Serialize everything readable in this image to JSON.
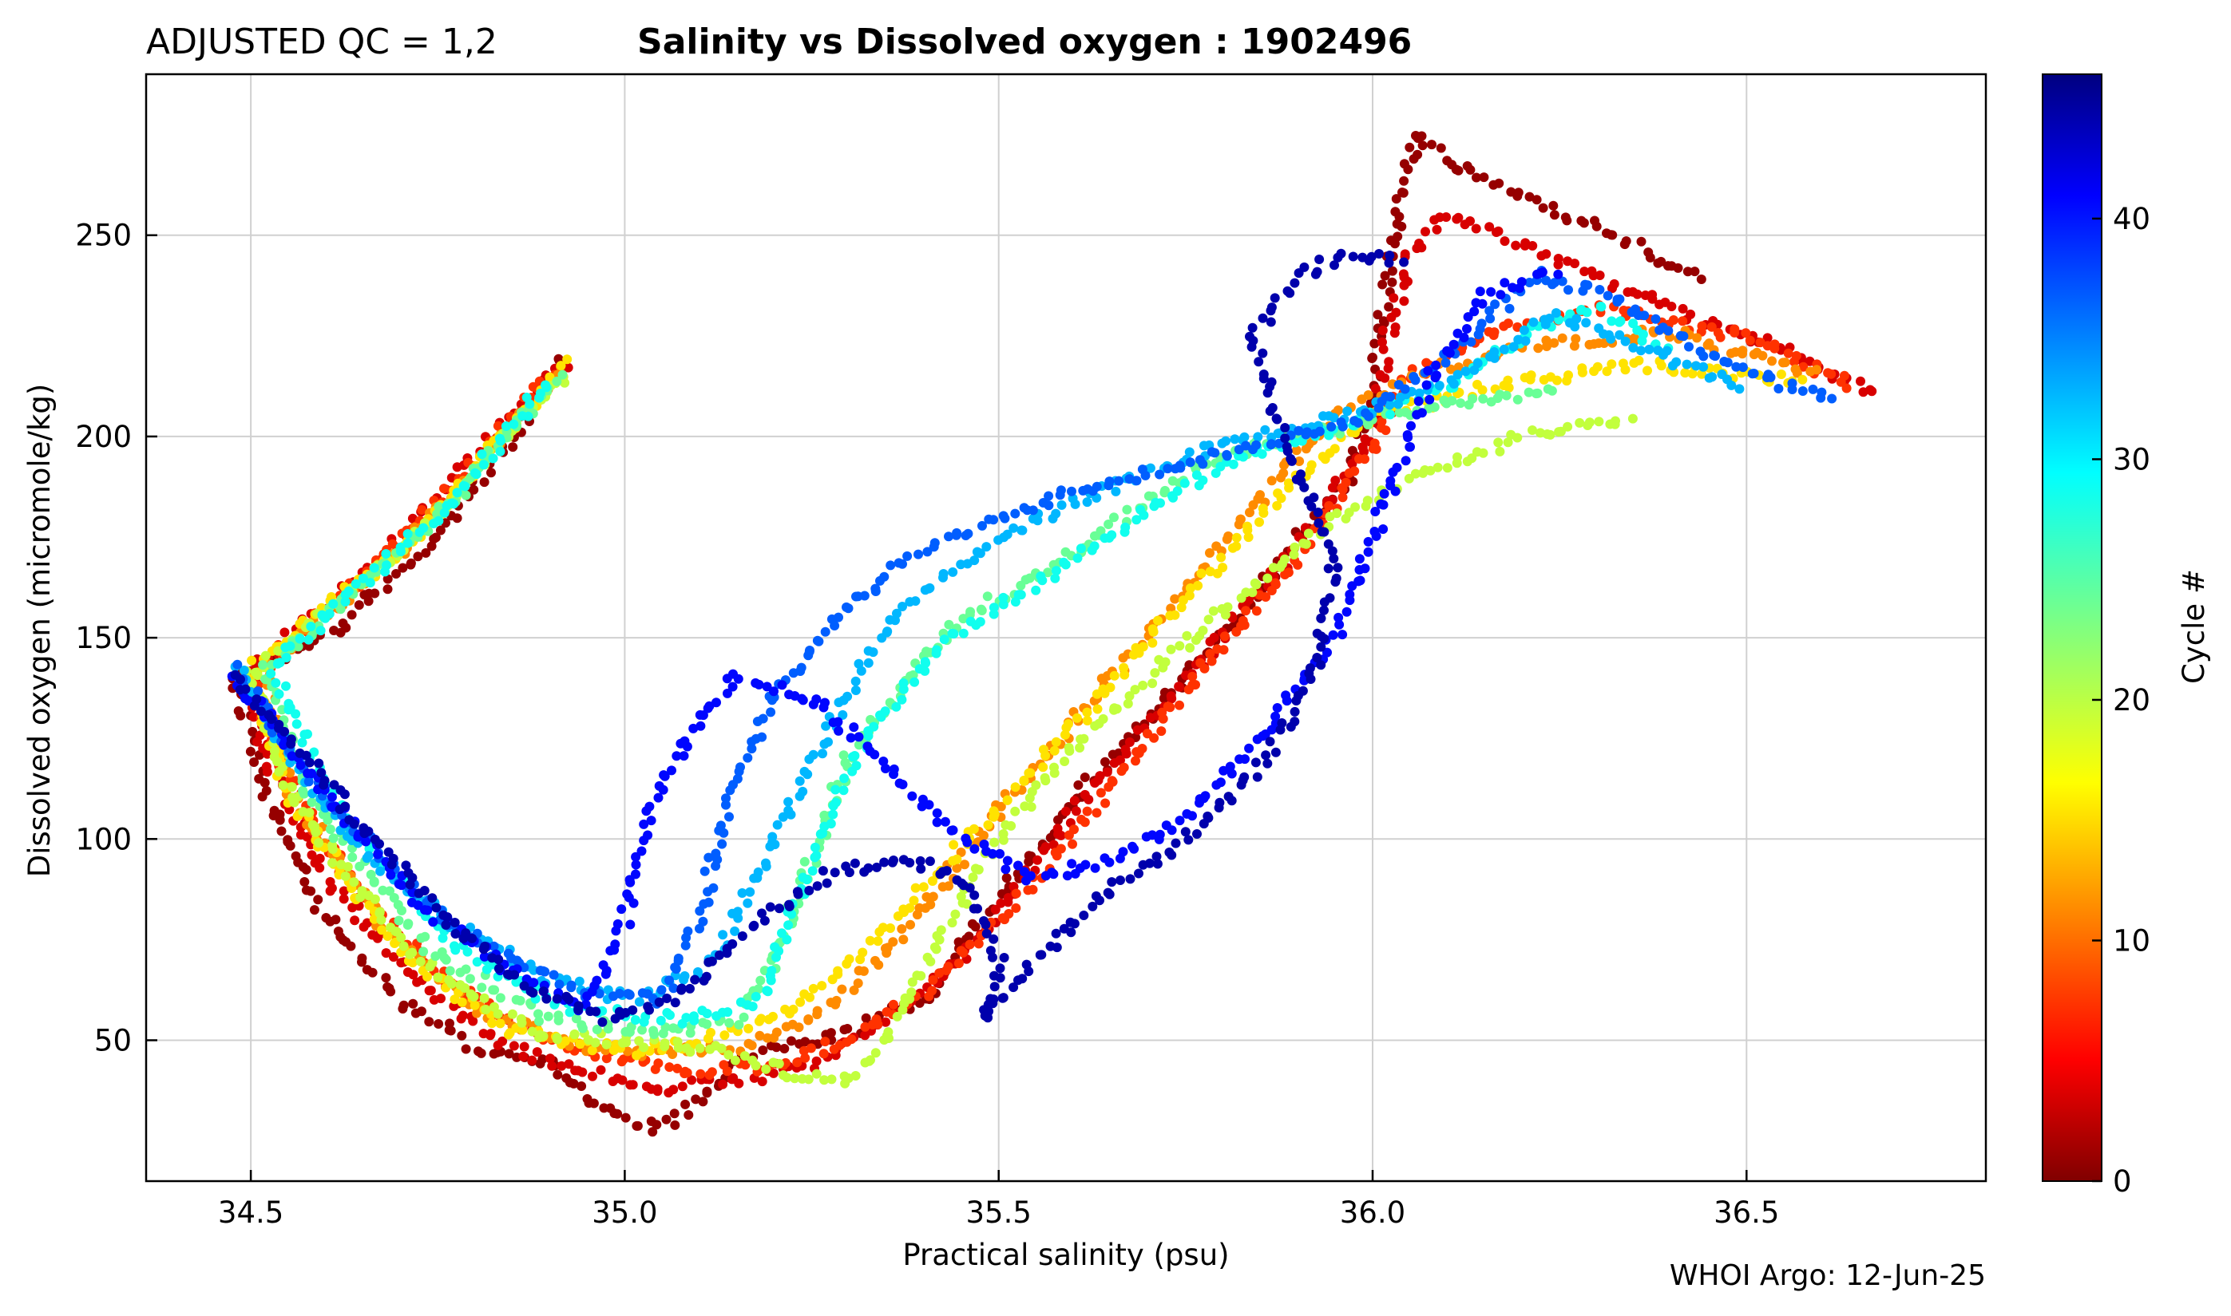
{
  "chart_data": {
    "type": "scatter",
    "title_left": "ADJUSTED QC = 1,2",
    "title": "Salinity vs Dissolved oxygen : 1902496",
    "xlabel": "Practical salinity  (psu)",
    "ylabel": "Dissolved oxygen  (micromole/kg)",
    "xlim": [
      34.36,
      36.82
    ],
    "ylim": [
      15,
      290
    ],
    "xticks": [
      34.5,
      35.0,
      35.5,
      36.0,
      36.5
    ],
    "xtick_labels": [
      "34.5",
      "35.0",
      "35.5",
      "36.0",
      "36.5"
    ],
    "yticks": [
      50,
      100,
      150,
      200,
      250
    ],
    "ytick_labels": [
      "50",
      "100",
      "150",
      "200",
      "250"
    ],
    "grid": true,
    "colorbar": {
      "label": "Cycle #",
      "colormap": "jet",
      "range": [
        0,
        46
      ],
      "ticks": [
        0,
        10,
        20,
        30,
        40
      ],
      "tick_labels": [
        "0",
        "10",
        "20",
        "30",
        "40"
      ]
    },
    "footer": "WHOI Argo: 12-Jun-25",
    "series": [
      {
        "cycle": 1,
        "points": [
          [
            34.92,
            220
          ],
          [
            34.85,
            200
          ],
          [
            34.75,
            175
          ],
          [
            34.6,
            150
          ],
          [
            34.48,
            140
          ],
          [
            34.52,
            110
          ],
          [
            34.6,
            80
          ],
          [
            34.7,
            60
          ],
          [
            34.8,
            48
          ],
          [
            34.9,
            45
          ],
          [
            34.95,
            35
          ],
          [
            35.0,
            30
          ],
          [
            35.05,
            28
          ],
          [
            35.1,
            35
          ],
          [
            35.15,
            45
          ],
          [
            35.2,
            48
          ],
          [
            35.3,
            52
          ],
          [
            35.4,
            60
          ],
          [
            35.5,
            85
          ],
          [
            35.6,
            110
          ],
          [
            35.7,
            130
          ],
          [
            35.8,
            150
          ],
          [
            35.9,
            175
          ],
          [
            35.97,
            190
          ],
          [
            36.0,
            210
          ],
          [
            36.02,
            240
          ],
          [
            36.04,
            262
          ],
          [
            36.06,
            275
          ],
          [
            36.1,
            268
          ],
          [
            36.2,
            260
          ],
          [
            36.3,
            252
          ],
          [
            36.45,
            238
          ]
        ]
      },
      {
        "cycle": 4,
        "points": [
          [
            34.92,
            218
          ],
          [
            34.8,
            195
          ],
          [
            34.65,
            165
          ],
          [
            34.5,
            142
          ],
          [
            34.52,
            120
          ],
          [
            34.6,
            90
          ],
          [
            34.72,
            65
          ],
          [
            34.85,
            48
          ],
          [
            34.95,
            42
          ],
          [
            35.05,
            38
          ],
          [
            35.15,
            40
          ],
          [
            35.25,
            44
          ],
          [
            35.35,
            55
          ],
          [
            35.45,
            70
          ],
          [
            35.55,
            95
          ],
          [
            35.65,
            118
          ],
          [
            35.75,
            140
          ],
          [
            35.85,
            162
          ],
          [
            35.92,
            178
          ],
          [
            36.0,
            200
          ],
          [
            36.02,
            225
          ],
          [
            36.05,
            245
          ],
          [
            36.1,
            255
          ],
          [
            36.2,
            248
          ],
          [
            36.3,
            240
          ],
          [
            36.42,
            230
          ],
          [
            36.55,
            222
          ],
          [
            36.68,
            210
          ]
        ]
      },
      {
        "cycle": 8,
        "points": [
          [
            34.9,
            215
          ],
          [
            34.78,
            190
          ],
          [
            34.62,
            160
          ],
          [
            34.5,
            140
          ],
          [
            34.55,
            115
          ],
          [
            34.65,
            85
          ],
          [
            34.78,
            62
          ],
          [
            34.9,
            50
          ],
          [
            35.0,
            45
          ],
          [
            35.1,
            42
          ],
          [
            35.2,
            44
          ],
          [
            35.3,
            50
          ],
          [
            35.4,
            62
          ],
          [
            35.5,
            80
          ],
          [
            35.6,
            100
          ],
          [
            35.7,
            125
          ],
          [
            35.8,
            148
          ],
          [
            35.9,
            170
          ],
          [
            35.98,
            192
          ],
          [
            36.05,
            215
          ],
          [
            36.15,
            225
          ],
          [
            36.3,
            232
          ],
          [
            36.5,
            225
          ],
          [
            36.65,
            212
          ]
        ]
      },
      {
        "cycle": 12,
        "points": [
          [
            34.92,
            217
          ],
          [
            34.7,
            172
          ],
          [
            34.52,
            143
          ],
          [
            34.55,
            112
          ],
          [
            34.68,
            78
          ],
          [
            34.8,
            58
          ],
          [
            34.95,
            48
          ],
          [
            35.05,
            47
          ],
          [
            35.15,
            48
          ],
          [
            35.25,
            55
          ],
          [
            35.35,
            72
          ],
          [
            35.45,
            95
          ],
          [
            35.55,
            118
          ],
          [
            35.65,
            140
          ],
          [
            35.75,
            162
          ],
          [
            35.85,
            185
          ],
          [
            35.95,
            205
          ],
          [
            36.05,
            215
          ],
          [
            36.2,
            222
          ],
          [
            36.4,
            226
          ],
          [
            36.6,
            215
          ]
        ]
      },
      {
        "cycle": 16,
        "points": [
          [
            34.92,
            218
          ],
          [
            34.72,
            175
          ],
          [
            34.5,
            142
          ],
          [
            34.55,
            110
          ],
          [
            34.7,
            72
          ],
          [
            34.85,
            52
          ],
          [
            35.0,
            47
          ],
          [
            35.1,
            50
          ],
          [
            35.2,
            56
          ],
          [
            35.3,
            68
          ],
          [
            35.4,
            88
          ],
          [
            35.5,
            108
          ],
          [
            35.6,
            128
          ],
          [
            35.7,
            150
          ],
          [
            35.8,
            170
          ],
          [
            35.9,
            190
          ],
          [
            36.0,
            205
          ],
          [
            36.15,
            212
          ],
          [
            36.35,
            218
          ],
          [
            36.58,
            214
          ]
        ]
      },
      {
        "cycle": 20,
        "points": [
          [
            34.92,
            216
          ],
          [
            34.74,
            178
          ],
          [
            34.5,
            141
          ],
          [
            34.56,
            108
          ],
          [
            34.72,
            70
          ],
          [
            34.88,
            52
          ],
          [
            35.0,
            50
          ],
          [
            35.12,
            48
          ],
          [
            35.22,
            42
          ],
          [
            35.3,
            40
          ],
          [
            35.35,
            50
          ],
          [
            35.42,
            75
          ],
          [
            35.5,
            100
          ],
          [
            35.6,
            122
          ],
          [
            35.7,
            140
          ],
          [
            35.82,
            160
          ],
          [
            35.95,
            180
          ],
          [
            36.08,
            192
          ],
          [
            36.2,
            200
          ],
          [
            36.35,
            205
          ]
        ]
      },
      {
        "cycle": 24,
        "points": [
          [
            34.91,
            215
          ],
          [
            34.75,
            180
          ],
          [
            34.52,
            142
          ],
          [
            34.58,
            110
          ],
          [
            34.74,
            72
          ],
          [
            34.9,
            55
          ],
          [
            35.05,
            52
          ],
          [
            35.15,
            55
          ],
          [
            35.2,
            70
          ],
          [
            35.25,
            95
          ],
          [
            35.3,
            120
          ],
          [
            35.38,
            140
          ],
          [
            35.45,
            155
          ],
          [
            35.55,
            165
          ],
          [
            35.65,
            178
          ],
          [
            35.75,
            190
          ],
          [
            35.85,
            198
          ],
          [
            35.95,
            202
          ],
          [
            36.1,
            208
          ],
          [
            36.25,
            212
          ]
        ]
      },
      {
        "cycle": 28,
        "points": [
          [
            34.9,
            214
          ],
          [
            34.76,
            182
          ],
          [
            34.53,
            143
          ],
          [
            34.6,
            112
          ],
          [
            34.76,
            75
          ],
          [
            34.92,
            58
          ],
          [
            35.08,
            55
          ],
          [
            35.18,
            60
          ],
          [
            35.22,
            80
          ],
          [
            35.28,
            110
          ],
          [
            35.34,
            130
          ],
          [
            35.42,
            148
          ],
          [
            35.52,
            160
          ],
          [
            35.62,
            172
          ],
          [
            35.72,
            184
          ],
          [
            35.82,
            195
          ],
          [
            35.95,
            202
          ],
          [
            36.1,
            212
          ],
          [
            36.2,
            225
          ],
          [
            36.3,
            232
          ],
          [
            36.4,
            220
          ]
        ]
      },
      {
        "cycle": 32,
        "points": [
          [
            34.48,
            143
          ],
          [
            34.56,
            118
          ],
          [
            34.66,
            95
          ],
          [
            34.78,
            78
          ],
          [
            34.9,
            65
          ],
          [
            35.02,
            60
          ],
          [
            35.12,
            70
          ],
          [
            35.2,
            100
          ],
          [
            35.28,
            130
          ],
          [
            35.36,
            155
          ],
          [
            35.46,
            170
          ],
          [
            35.56,
            180
          ],
          [
            35.66,
            188
          ],
          [
            35.76,
            196
          ],
          [
            35.88,
            202
          ],
          [
            36.0,
            207
          ],
          [
            36.12,
            215
          ],
          [
            36.24,
            230
          ],
          [
            36.36,
            222
          ],
          [
            36.5,
            212
          ]
        ]
      },
      {
        "cycle": 36,
        "points": [
          [
            34.48,
            142
          ],
          [
            34.58,
            115
          ],
          [
            34.7,
            90
          ],
          [
            34.82,
            72
          ],
          [
            34.95,
            62
          ],
          [
            35.05,
            60
          ],
          [
            35.1,
            80
          ],
          [
            35.14,
            110
          ],
          [
            35.2,
            135
          ],
          [
            35.3,
            158
          ],
          [
            35.4,
            172
          ],
          [
            35.5,
            180
          ],
          [
            35.6,
            186
          ],
          [
            35.72,
            192
          ],
          [
            35.85,
            198
          ],
          [
            35.98,
            204
          ],
          [
            36.1,
            220
          ],
          [
            36.22,
            240
          ],
          [
            36.32,
            235
          ],
          [
            36.45,
            220
          ],
          [
            36.62,
            208
          ]
        ]
      },
      {
        "cycle": 40,
        "points": [
          [
            34.48,
            140
          ],
          [
            34.6,
            112
          ],
          [
            34.72,
            85
          ],
          [
            34.84,
            68
          ],
          [
            34.95,
            58
          ],
          [
            35.0,
            80
          ],
          [
            35.04,
            110
          ],
          [
            35.1,
            130
          ],
          [
            35.15,
            140
          ],
          [
            35.25,
            135
          ],
          [
            35.35,
            118
          ],
          [
            35.45,
            100
          ],
          [
            35.55,
            90
          ],
          [
            35.65,
            95
          ],
          [
            35.75,
            105
          ],
          [
            35.85,
            125
          ],
          [
            35.95,
            150
          ],
          [
            36.02,
            185
          ],
          [
            36.08,
            215
          ],
          [
            36.15,
            235
          ],
          [
            36.25,
            242
          ]
        ]
      },
      {
        "cycle": 44,
        "points": [
          [
            34.48,
            141
          ],
          [
            34.62,
            110
          ],
          [
            34.75,
            82
          ],
          [
            34.88,
            62
          ],
          [
            34.98,
            55
          ],
          [
            35.08,
            62
          ],
          [
            35.18,
            80
          ],
          [
            35.28,
            92
          ],
          [
            35.38,
            95
          ],
          [
            35.45,
            90
          ],
          [
            35.5,
            70
          ],
          [
            35.48,
            55
          ],
          [
            35.55,
            70
          ],
          [
            35.65,
            88
          ],
          [
            35.75,
            100
          ],
          [
            35.85,
            118
          ],
          [
            35.92,
            140
          ],
          [
            35.95,
            170
          ],
          [
            35.88,
            200
          ],
          [
            35.84,
            225
          ],
          [
            35.9,
            240
          ],
          [
            35.96,
            245
          ],
          [
            36.05,
            244
          ]
        ]
      }
    ]
  }
}
